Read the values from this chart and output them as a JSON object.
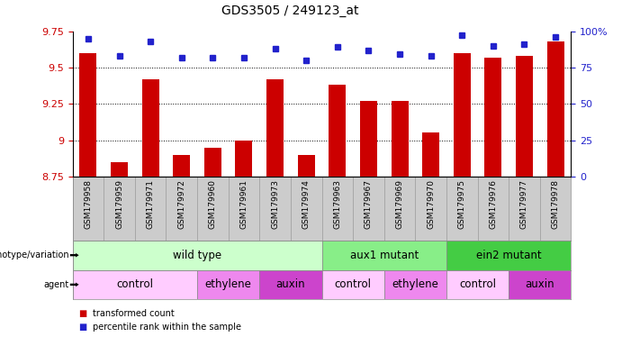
{
  "title": "GDS3505 / 249123_at",
  "samples": [
    "GSM179958",
    "GSM179959",
    "GSM179971",
    "GSM179972",
    "GSM179960",
    "GSM179961",
    "GSM179973",
    "GSM179974",
    "GSM179963",
    "GSM179967",
    "GSM179969",
    "GSM179970",
    "GSM179975",
    "GSM179976",
    "GSM179977",
    "GSM179978"
  ],
  "bar_values": [
    9.6,
    8.85,
    9.42,
    8.9,
    8.95,
    9.0,
    9.42,
    8.9,
    9.38,
    9.27,
    9.27,
    9.05,
    9.6,
    9.57,
    9.58,
    9.68
  ],
  "percentile_values": [
    95,
    83,
    93,
    82,
    82,
    82,
    88,
    80,
    89,
    87,
    84,
    83,
    97,
    90,
    91,
    96
  ],
  "ymin": 8.75,
  "ymax": 9.75,
  "yticks": [
    8.75,
    9.0,
    9.25,
    9.5,
    9.75
  ],
  "ytick_labels": [
    "8.75",
    "9",
    "9.25",
    "9.5",
    "9.75"
  ],
  "right_yticks": [
    0,
    25,
    50,
    75,
    100
  ],
  "right_ytick_labels": [
    "0",
    "25",
    "50",
    "75",
    "100%"
  ],
  "bar_color": "#cc0000",
  "dot_color": "#2222cc",
  "dotted_line_y": [
    9.5,
    9.25,
    9.0
  ],
  "genotype_groups": [
    {
      "label": "wild type",
      "start": 0,
      "end": 8,
      "color": "#ccffcc"
    },
    {
      "label": "aux1 mutant",
      "start": 8,
      "end": 12,
      "color": "#88ee88"
    },
    {
      "label": "ein2 mutant",
      "start": 12,
      "end": 16,
      "color": "#44cc44"
    }
  ],
  "agent_groups": [
    {
      "label": "control",
      "start": 0,
      "end": 4,
      "color": "#ffccff"
    },
    {
      "label": "ethylene",
      "start": 4,
      "end": 6,
      "color": "#ee88ee"
    },
    {
      "label": "auxin",
      "start": 6,
      "end": 8,
      "color": "#cc44cc"
    },
    {
      "label": "control",
      "start": 8,
      "end": 10,
      "color": "#ffccff"
    },
    {
      "label": "ethylene",
      "start": 10,
      "end": 12,
      "color": "#ee88ee"
    },
    {
      "label": "control",
      "start": 12,
      "end": 14,
      "color": "#ffccff"
    },
    {
      "label": "auxin",
      "start": 14,
      "end": 16,
      "color": "#cc44cc"
    }
  ],
  "legend_items": [
    {
      "color": "#cc0000",
      "label": "transformed count"
    },
    {
      "color": "#2222cc",
      "label": "percentile rank within the sample"
    }
  ],
  "left_tick_color": "#cc0000",
  "right_tick_color": "#2222cc",
  "background_color": "#ffffff",
  "sample_box_color": "#cccccc",
  "sample_box_border": "#999999"
}
